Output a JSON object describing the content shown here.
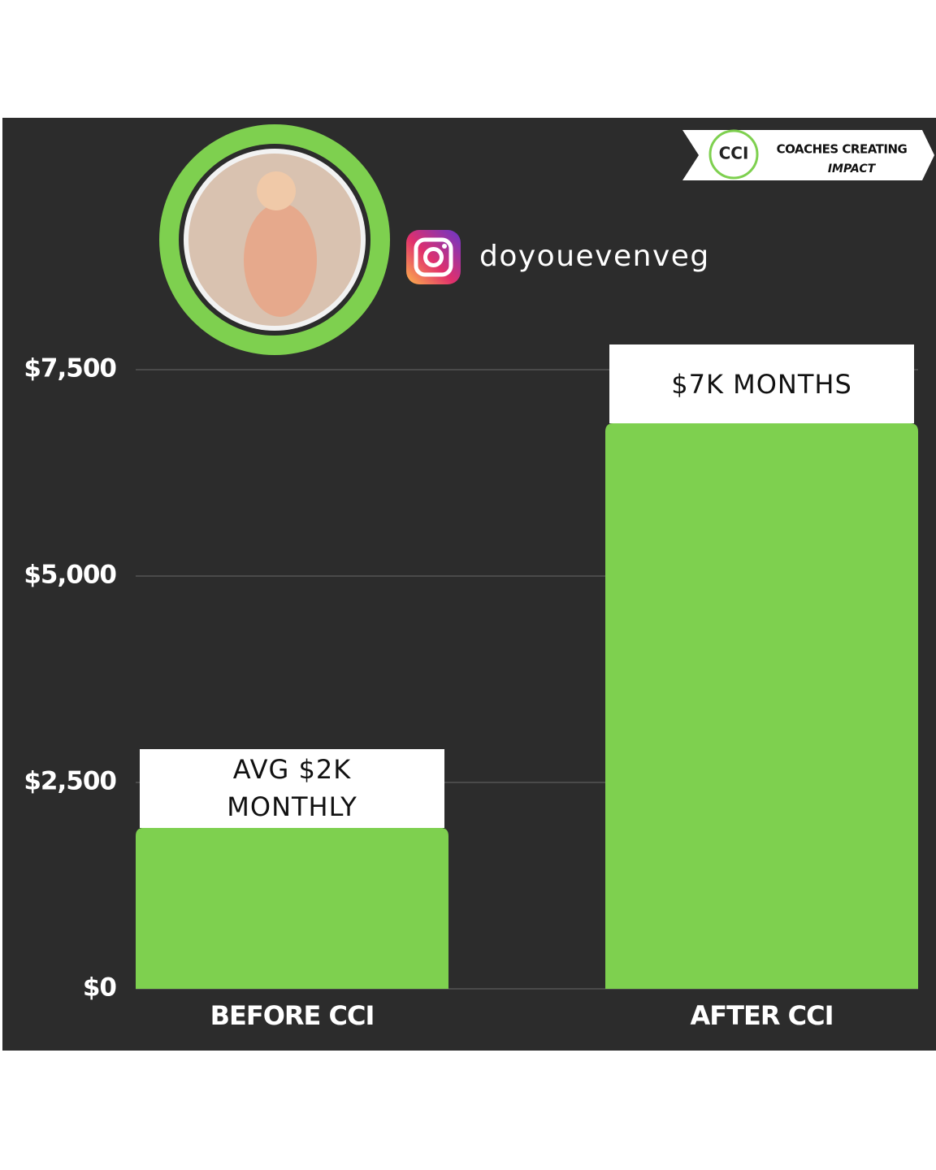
{
  "chart_data": {
    "type": "bar",
    "handle": "doyouevenveg",
    "logo": {
      "mark": "CCI",
      "line1": "COACHES CREATING",
      "line2": "IMPACT"
    },
    "categories": [
      "BEFORE CCI",
      "AFTER CCI"
    ],
    "values": [
      1950,
      6850
    ],
    "value_labels": [
      "AVG $2K MONTHLY",
      "$7K MONTHS"
    ],
    "color": "#7ed04f",
    "ylim": [
      0,
      7500
    ],
    "yticks": [
      {
        "value": 0,
        "label": "$0"
      },
      {
        "value": 2500,
        "label": "$2,500"
      },
      {
        "value": 5000,
        "label": "$5,000"
      },
      {
        "value": 7500,
        "label": "$7,500"
      }
    ],
    "grid": true
  }
}
